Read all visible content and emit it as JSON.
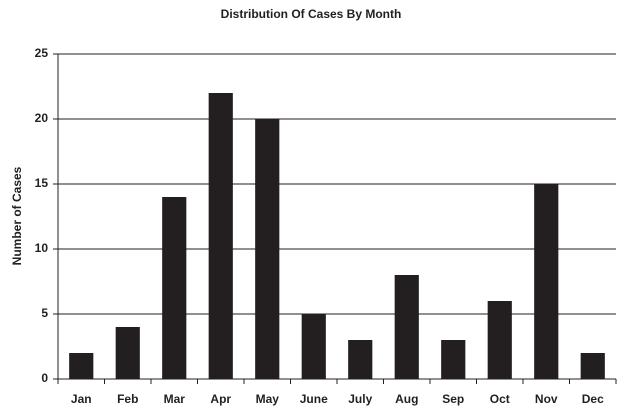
{
  "chart_data": {
    "type": "bar",
    "title": "Distribution Of Cases By Month",
    "y_label": "Number of Cases",
    "categories": [
      "Jan",
      "Feb",
      "Mar",
      "Apr",
      "May",
      "June",
      "July",
      "Aug",
      "Sep",
      "Oct",
      "Nov",
      "Dec"
    ],
    "values": [
      2,
      4,
      14,
      22,
      20,
      5,
      3,
      8,
      3,
      6,
      15,
      2
    ],
    "color": "#231f20",
    "ylim": [
      0,
      25
    ],
    "yticks": [
      0,
      5,
      10,
      15,
      20,
      25
    ],
    "grid": true
  }
}
